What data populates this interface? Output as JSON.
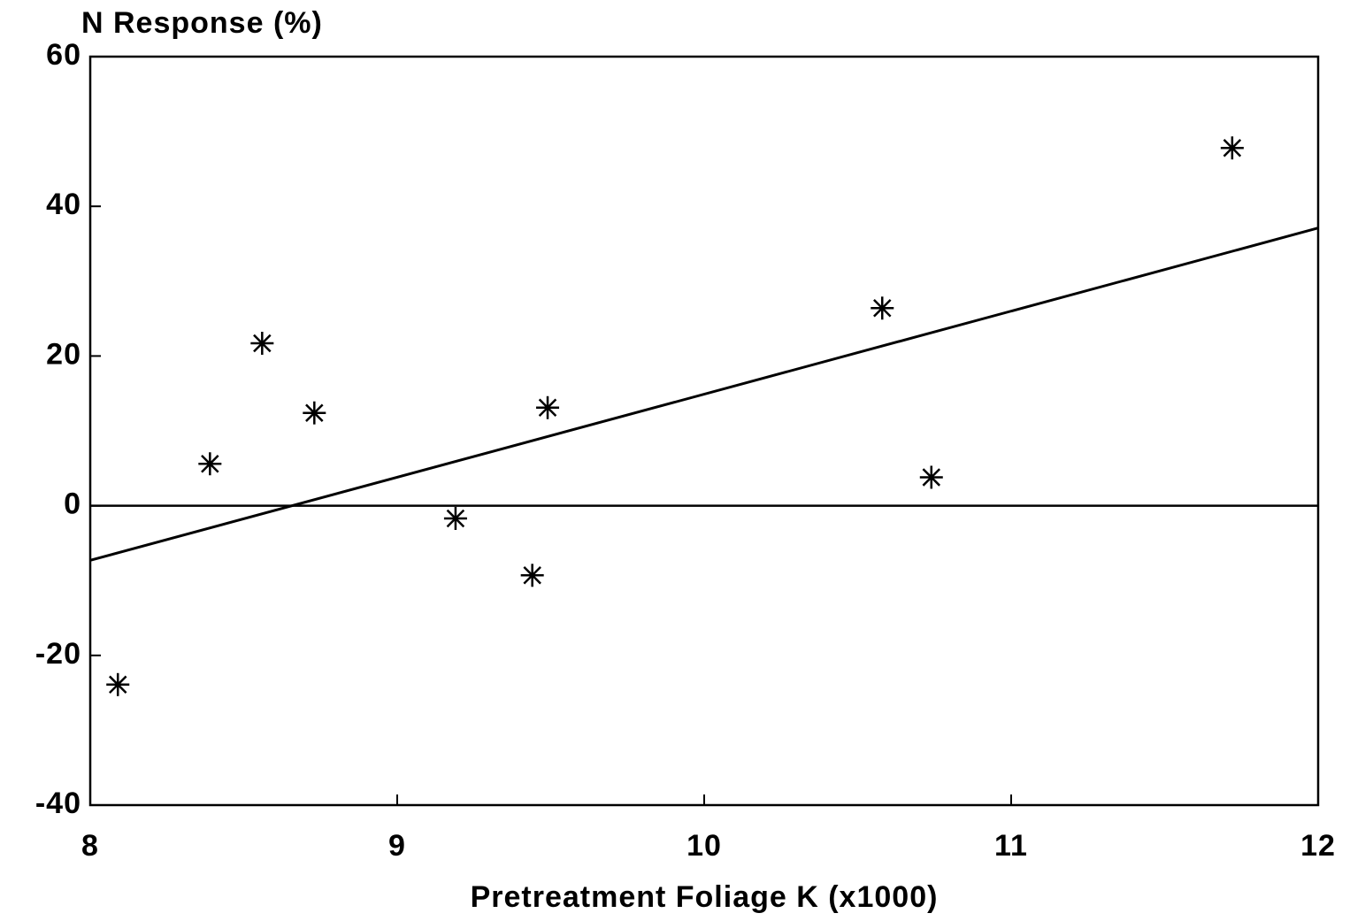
{
  "chart_data": {
    "type": "scatter",
    "title": "N Response (%)",
    "xlabel": "Pretreatment Foliage K (x1000)",
    "x": [
      8.09,
      8.39,
      8.56,
      8.73,
      9.19,
      9.44,
      9.49,
      10.58,
      10.74,
      11.72
    ],
    "values": [
      -23.9,
      5.6,
      21.7,
      12.4,
      -1.7,
      -9.3,
      13.1,
      26.4,
      3.8,
      47.8
    ],
    "marker": "asterisk",
    "color": "#000000",
    "fit": {
      "x": [
        8,
        12
      ],
      "values": [
        -7.3,
        37.1
      ]
    },
    "hline": 0,
    "xlim": [
      8,
      12
    ],
    "ylim": [
      -40,
      60
    ],
    "xticks": [
      8,
      9,
      10,
      11,
      12
    ],
    "yticks": [
      -40,
      -20,
      0,
      20,
      40,
      60
    ]
  }
}
